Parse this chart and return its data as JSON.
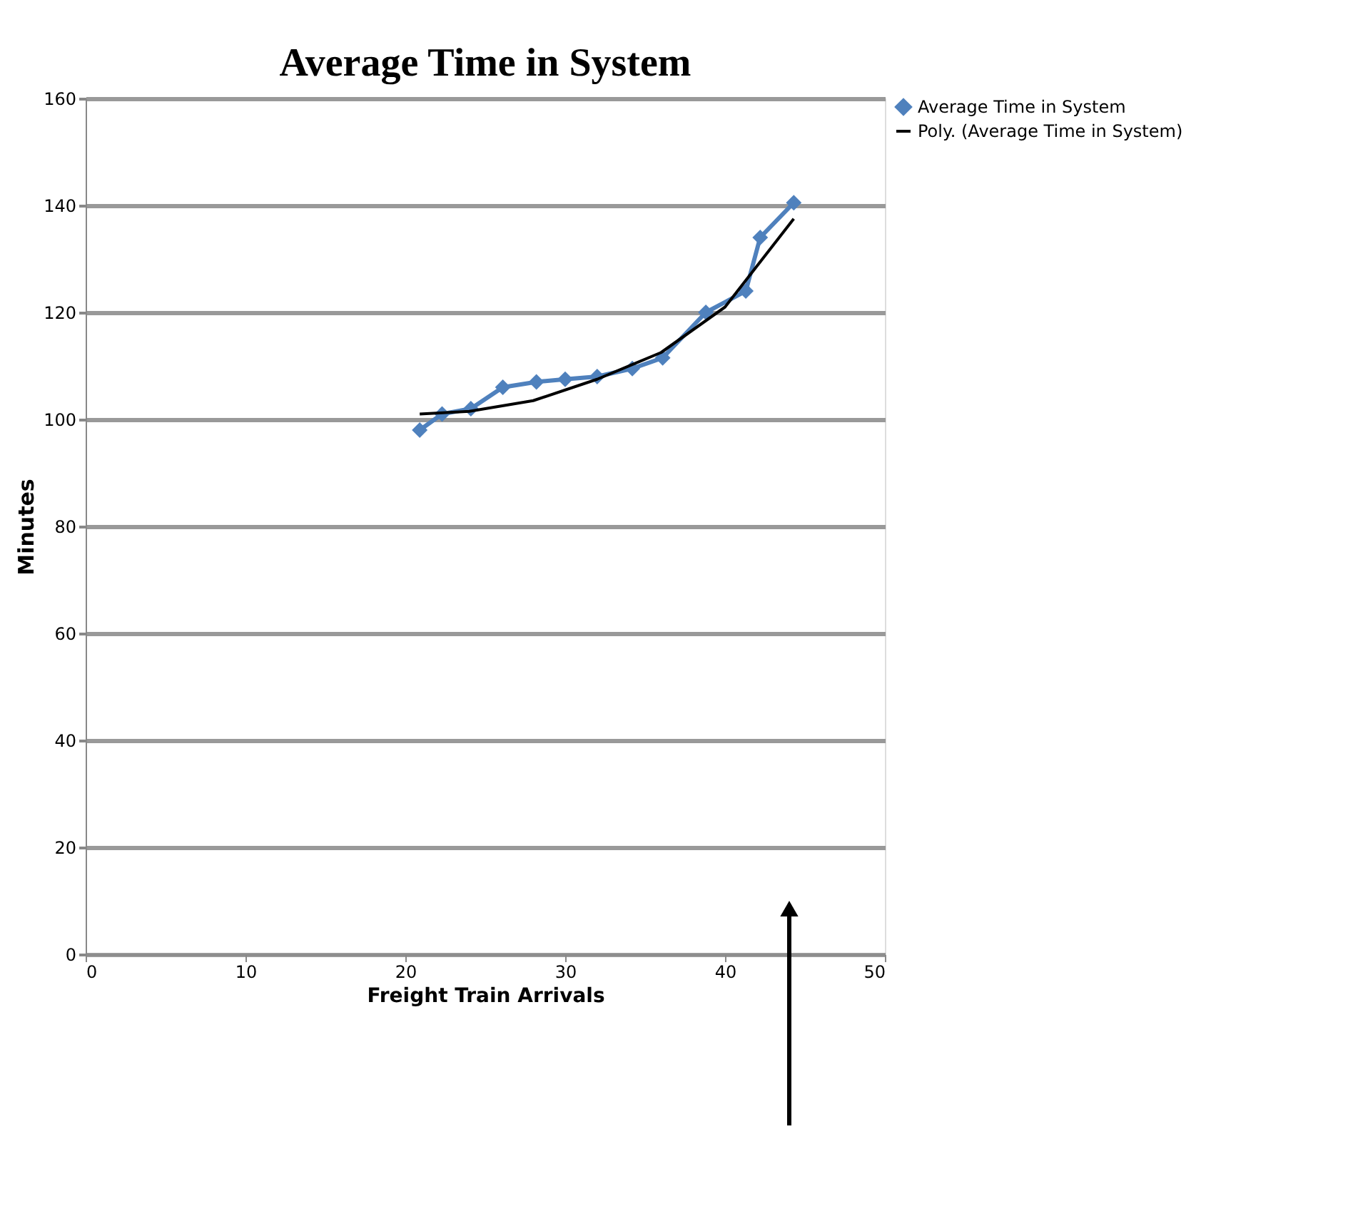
{
  "chart_data": [
    {
      "type": "line",
      "title": "Average Time in System",
      "xlabel": "Freight Train Arrivals",
      "ylabel": "Minutes",
      "xlim": [
        0,
        50
      ],
      "xticks": [
        0,
        10,
        20,
        30,
        40,
        50
      ],
      "ylim": [
        0,
        160
      ],
      "yticks": [
        0,
        20,
        40,
        60,
        80,
        100,
        120,
        140,
        160
      ],
      "grid": "y",
      "legend": "right",
      "series": [
        {
          "name": "Average Time in System",
          "marker": "diamond",
          "color": "#4f81bd",
          "x": [
            20.9,
            22.3,
            24.1,
            26.1,
            28.2,
            30.0,
            32.0,
            34.2,
            36.1,
            38.8,
            41.3,
            42.2,
            44.3
          ],
          "values": [
            98,
            101,
            102,
            106,
            107,
            107.5,
            108,
            109.5,
            111.5,
            120,
            124,
            134,
            140.5
          ]
        },
        {
          "name": "Poly. (Average Time in System)",
          "marker": "none",
          "color": "#000000",
          "x": [
            20.9,
            24,
            28,
            32,
            36,
            40,
            44.3
          ],
          "values": [
            101,
            101.5,
            103.5,
            107.5,
            112.5,
            121,
            137.5
          ]
        }
      ]
    }
  ]
}
